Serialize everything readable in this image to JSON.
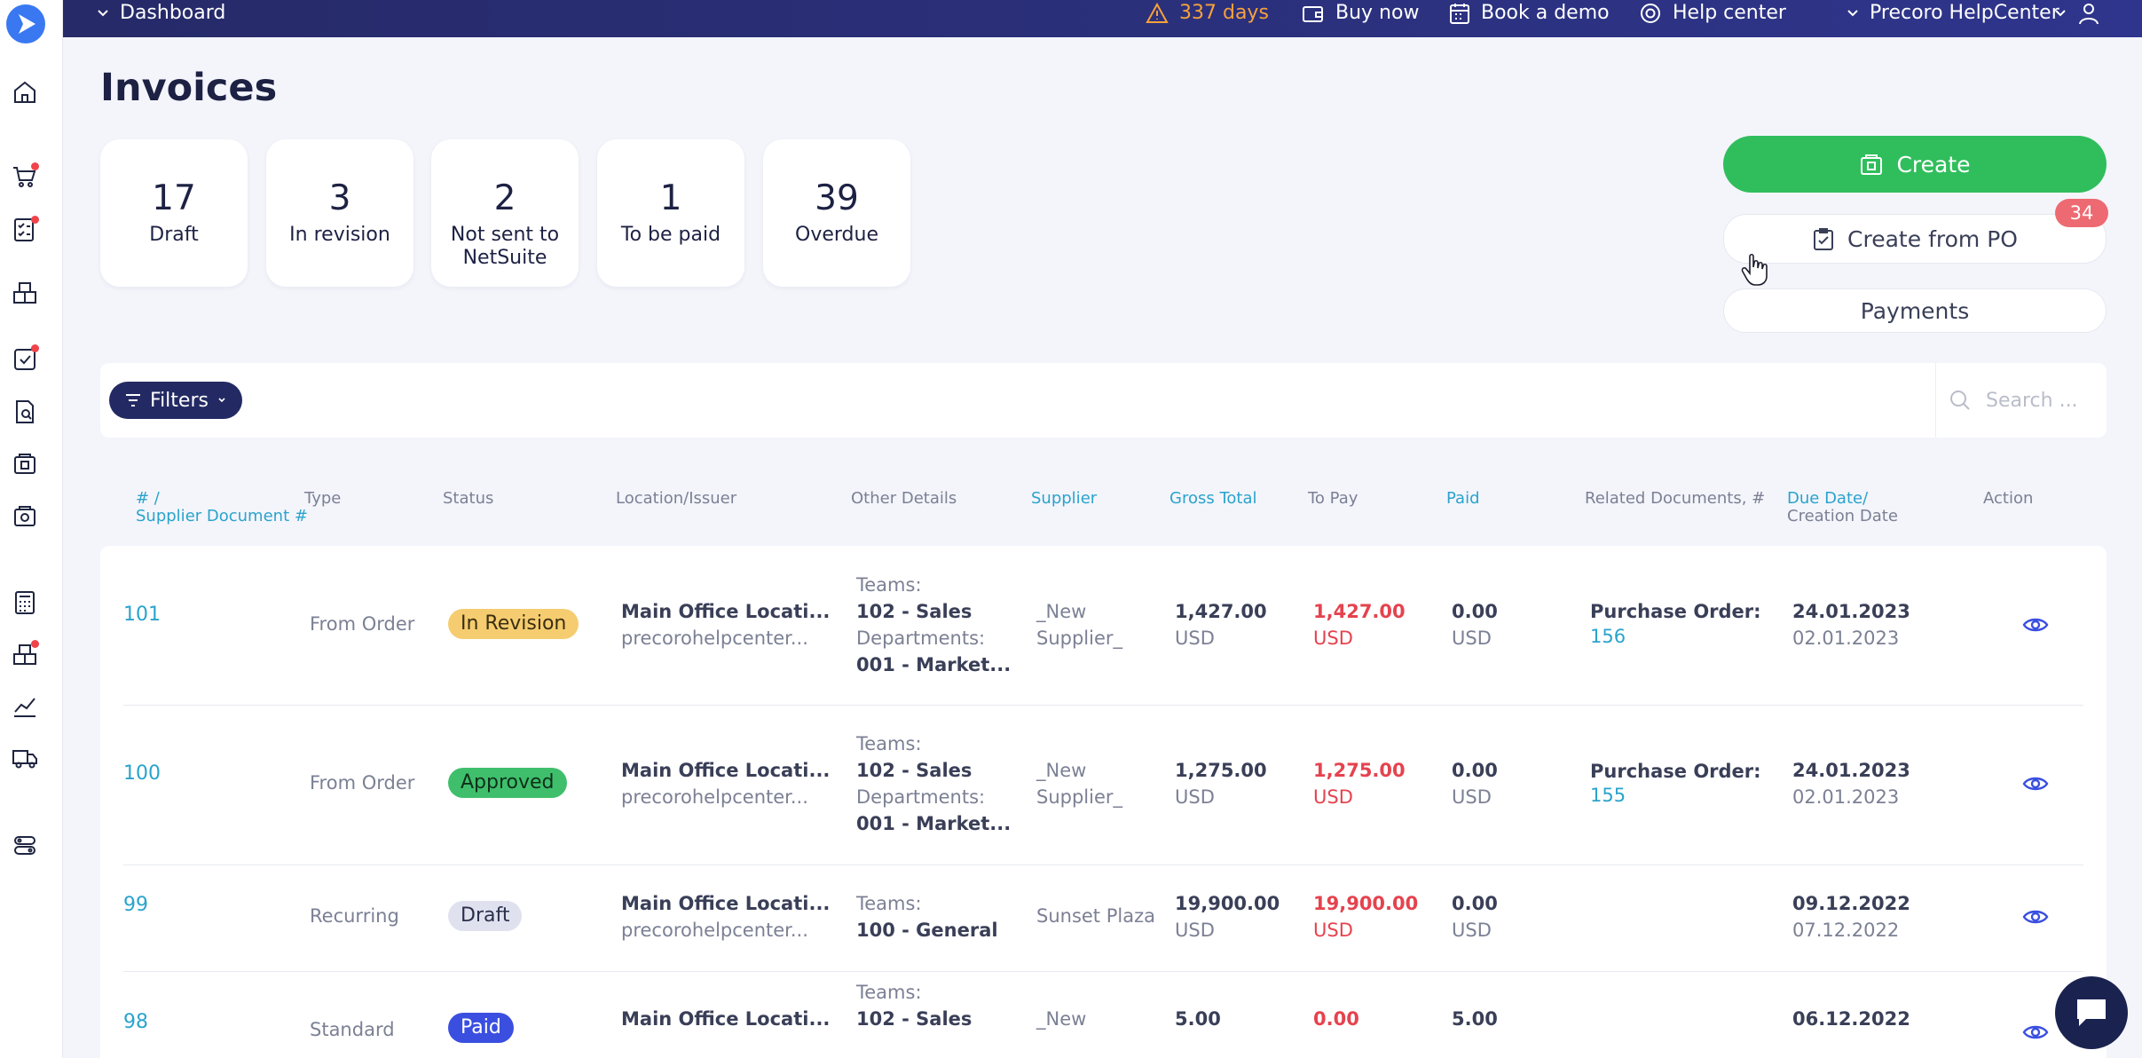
{
  "topbar": {
    "dashboard": "Dashboard",
    "trial": "337 days",
    "buy_now": "Buy now",
    "book_demo": "Book a demo",
    "help_center": "Help center",
    "company": "Precoro HelpCenter"
  },
  "page_title": "Invoices",
  "stats": [
    {
      "num": "17",
      "label": "Draft"
    },
    {
      "num": "3",
      "label": "In revision"
    },
    {
      "num": "2",
      "label": "Not sent to NetSuite"
    },
    {
      "num": "1",
      "label": "To be paid"
    },
    {
      "num": "39",
      "label": "Overdue"
    }
  ],
  "actions": {
    "create": "Create",
    "create_from_po": "Create from PO",
    "create_from_po_count": "34",
    "payments": "Payments"
  },
  "filters": {
    "label": "Filters",
    "search_placeholder": "Search ..."
  },
  "columns": {
    "id_line1": "# /",
    "id_line2": "Supplier Document #",
    "type": "Type",
    "status": "Status",
    "location": "Location/Issuer",
    "other": "Other Details",
    "supplier": "Supplier",
    "gross": "Gross Total",
    "topay": "To Pay",
    "paid": "Paid",
    "related": "Related Documents, #",
    "due_line1": "Due Date/",
    "due_line2": "Creation Date",
    "action": "Action"
  },
  "rows": [
    {
      "id": "101",
      "type": "From Order",
      "status": "In Revision",
      "location": "Main Office Locati...",
      "issuer": "precorohelpcenter...",
      "teams_label": "Teams:",
      "teams": "102 - Sales",
      "dept_label": "Departments:",
      "dept": "001 - Market...",
      "supplier1": "_New",
      "supplier2": "Supplier_",
      "gross": "1,427.00",
      "gross_cur": "USD",
      "topay": "1,427.00",
      "topay_cur": "USD",
      "paid": "0.00",
      "paid_cur": "USD",
      "related_label": "Purchase Order:",
      "related_num": "156",
      "due": "24.01.2023",
      "created": "02.01.2023"
    },
    {
      "id": "100",
      "type": "From Order",
      "status": "Approved",
      "location": "Main Office Locati...",
      "issuer": "precorohelpcenter...",
      "teams_label": "Teams:",
      "teams": "102 - Sales",
      "dept_label": "Departments:",
      "dept": "001 - Market...",
      "supplier1": "_New",
      "supplier2": "Supplier_",
      "gross": "1,275.00",
      "gross_cur": "USD",
      "topay": "1,275.00",
      "topay_cur": "USD",
      "paid": "0.00",
      "paid_cur": "USD",
      "related_label": "Purchase Order:",
      "related_num": "155",
      "due": "24.01.2023",
      "created": "02.01.2023"
    },
    {
      "id": "99",
      "type": "Recurring",
      "status": "Draft",
      "location": "Main Office Locati...",
      "issuer": "precorohelpcenter...",
      "teams_label": "Teams:",
      "teams": "100 - General",
      "supplier1": "Sunset Plaza",
      "gross": "19,900.00",
      "gross_cur": "USD",
      "topay": "19,900.00",
      "topay_cur": "USD",
      "paid": "0.00",
      "paid_cur": "USD",
      "due": "09.12.2022",
      "created": "07.12.2022"
    },
    {
      "id": "98",
      "type": "Standard",
      "status": "Paid",
      "location": "Main Office Locati...",
      "teams_label": "Teams:",
      "teams": "102 - Sales",
      "supplier1": "_New",
      "gross": "5.00",
      "topay": "0.00",
      "paid": "5.00",
      "due": "06.12.2022"
    }
  ],
  "colors": {
    "topbar": "#2a2f78",
    "create_green": "#30be5c",
    "link_blue": "#2aa3cc",
    "red": "#e5434e",
    "badge_red": "#ee6a72",
    "warning": "#f6a13c"
  },
  "icons": [
    "logo-icon",
    "home-icon",
    "cart-icon",
    "checklist-icon",
    "boxes-icon",
    "task-icon",
    "document-search-icon",
    "invoice-icon",
    "invoice-2-icon",
    "calculator-icon",
    "warehouse-icon",
    "chart-icon",
    "truck-icon",
    "settings-toggle-icon",
    "warning-icon",
    "wallet-icon",
    "calendar-icon",
    "help-icon",
    "user-icon",
    "eye-icon",
    "chat-icon"
  ]
}
